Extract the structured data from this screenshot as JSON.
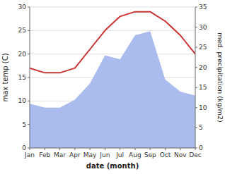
{
  "chart_data": {
    "type": "line",
    "categories": [
      "Jan",
      "Feb",
      "Mar",
      "Apr",
      "May",
      "Jun",
      "Jul",
      "Aug",
      "Sep",
      "Oct",
      "Nov",
      "Dec"
    ],
    "series": [
      {
        "type": "area",
        "axis": "y2",
        "color": "#aabbee",
        "values": [
          11,
          10,
          10,
          12,
          16,
          23,
          22,
          28,
          29,
          17,
          14,
          13
        ]
      },
      {
        "type": "line",
        "color": "#cc3333",
        "values": [
          17,
          16,
          16,
          17,
          21,
          25,
          28,
          29,
          29,
          27,
          24,
          20
        ]
      }
    ],
    "x_label": "date (month)",
    "y_label": "max temp (C)",
    "y2_label": "med. precipitation (kg/m2)",
    "ylim": [
      0,
      30
    ],
    "yticks": [
      0,
      5,
      10,
      15,
      20,
      25,
      30
    ],
    "y2lim": [
      0,
      35
    ],
    "y2ticks": [
      0,
      5,
      10,
      15,
      20,
      25,
      30,
      35
    ],
    "grid": true
  }
}
